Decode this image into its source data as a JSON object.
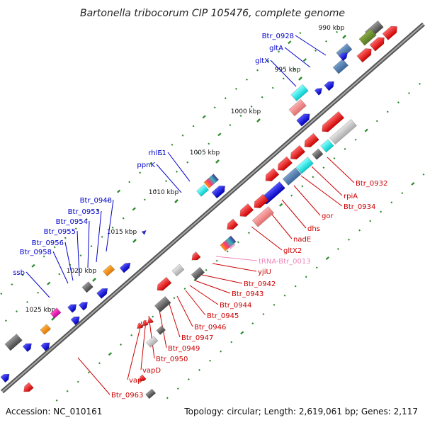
{
  "title": "Bartonella tribocorum CIP 105476, complete genome",
  "footer": {
    "accession": "Accession: NC_010161",
    "summary": "Topology: circular; Length: 2,619,061 bp; Genes: 2,117"
  },
  "colors": {
    "backbone": "#7a7a7a",
    "dot_marks": "#2a8a2a",
    "forward_label": "#0000cc",
    "reverse_label": "#cc0000",
    "trna_label": "#ee88bb",
    "gene_forward": "#0000ee",
    "gene_reverse": "#ee0000"
  },
  "scale_ticks": [
    "990 kbp",
    "995 kbp",
    "1000 kbp",
    "1005 kbp",
    "1010 kbp",
    "1015 kbp",
    "1020 kbp",
    "1025 kbp"
  ],
  "forward_labels": [
    "Btr_0928",
    "gltA",
    "gltX",
    "rhlE1",
    "ppnK",
    "Btr_0948",
    "Btr_0953",
    "Btr_0954",
    "Btr_0955",
    "Btr_0956",
    "Btr_0958",
    "ssb"
  ],
  "reverse_labels": [
    "Btr_0932",
    "rpiA",
    "Btr_0934",
    "gor",
    "dhs",
    "nadE",
    "gltX2",
    "tRNA-Btr_0013",
    "yjiU",
    "Btr_0942",
    "Btr_0943",
    "Btr_0944",
    "Btr_0945",
    "Btr_0946",
    "Btr_0947",
    "Btr_0949",
    "Btr_0950",
    "vapD",
    "vap",
    "Btr_0963"
  ]
}
